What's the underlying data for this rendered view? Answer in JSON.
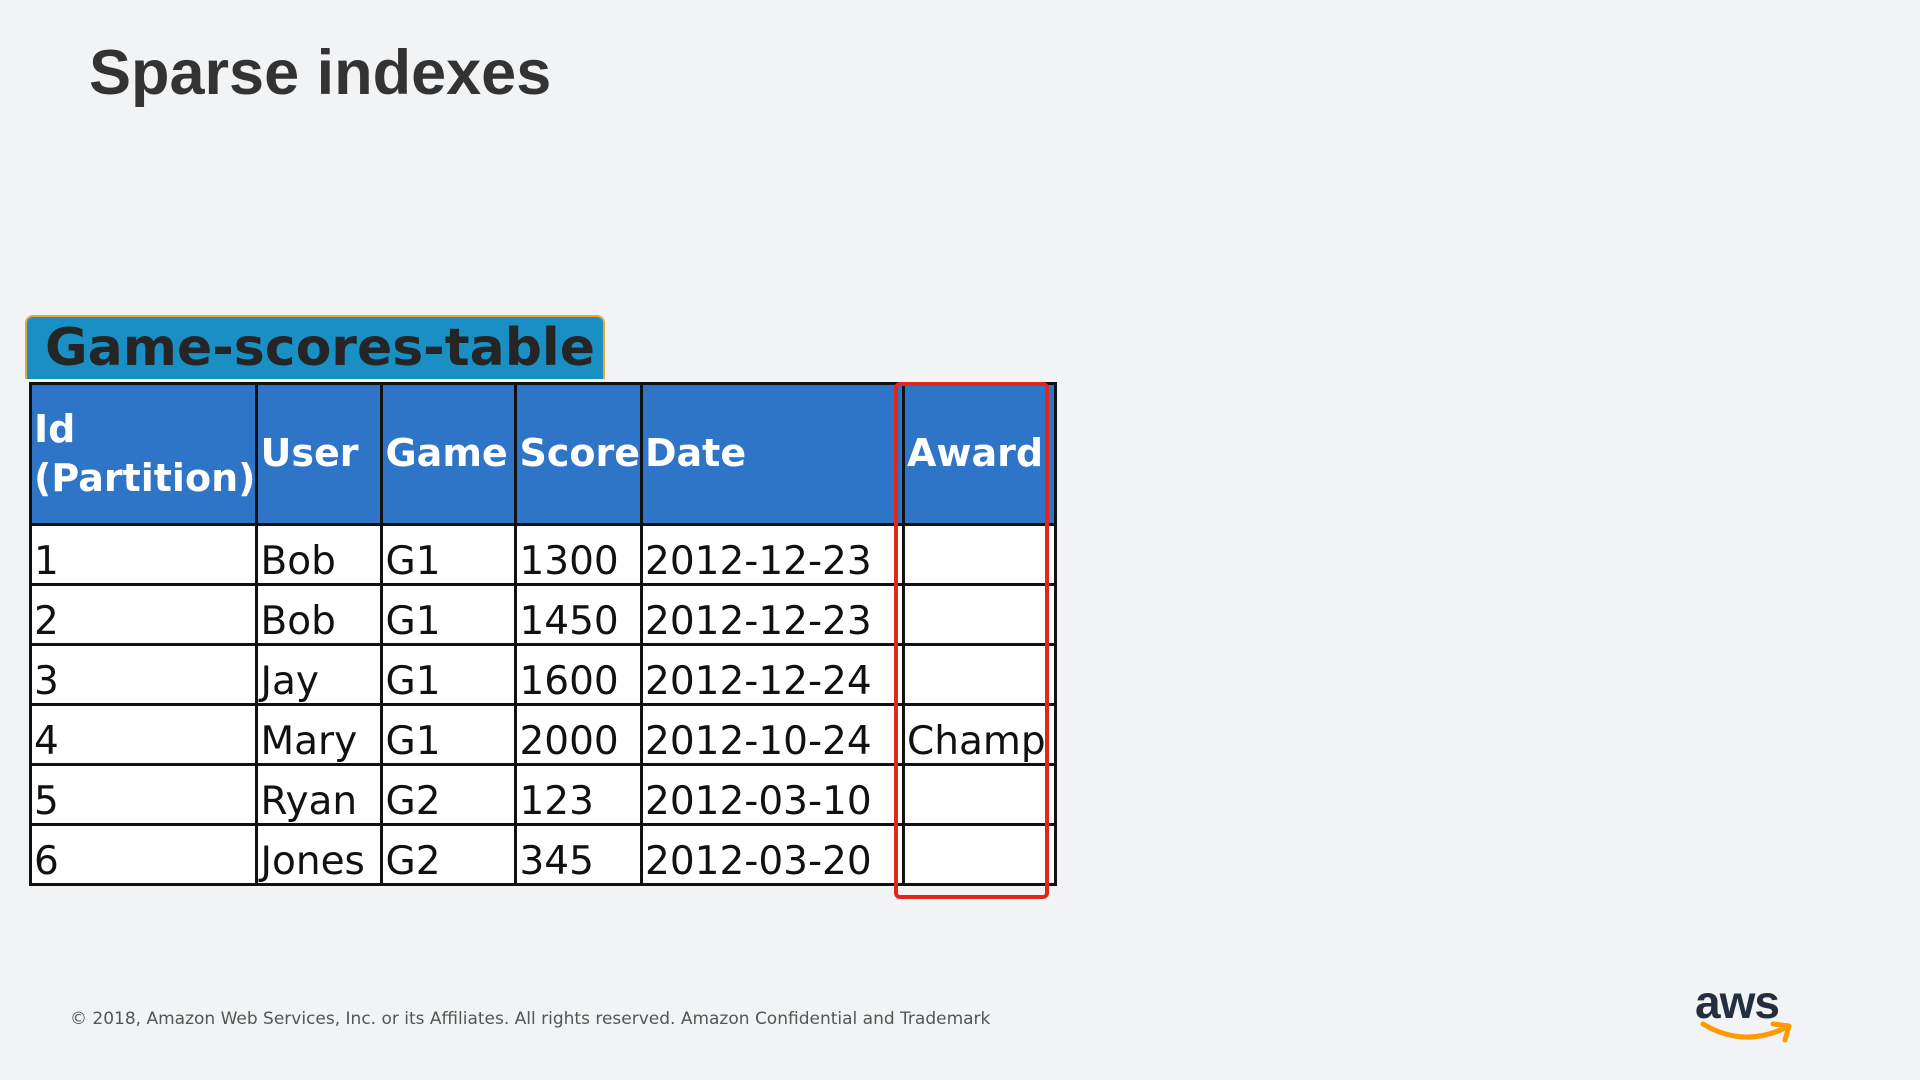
{
  "slide": {
    "title": "Sparse indexes",
    "table_name": "Game-scores-table",
    "footer": "© 2018, Amazon Web Services, Inc. or its Affiliates. All rights reserved. Amazon Confidential and Trademark",
    "logo_text": "aws"
  },
  "table": {
    "headers": [
      "Id (Partition)",
      "User",
      "Game",
      "Score",
      "Date",
      "Award"
    ],
    "rows": [
      [
        "1",
        "Bob",
        "G1",
        "1300",
        "2012-12-23",
        ""
      ],
      [
        "2",
        "Bob",
        "G1",
        "1450",
        "2012-12-23",
        ""
      ],
      [
        "3",
        "Jay",
        "G1",
        "1600",
        "2012-12-24",
        ""
      ],
      [
        "4",
        "Mary",
        "G1",
        "2000",
        "2012-10-24",
        "Champ"
      ],
      [
        "5",
        "Ryan",
        "G2",
        "123",
        "2012-03-10",
        ""
      ],
      [
        "6",
        "Jones",
        "G2",
        "345",
        "2012-03-20",
        ""
      ]
    ]
  },
  "colors": {
    "header_bg": "#2e74c7",
    "tab_bg": "#1a8fc4",
    "tab_border": "#e9a63a",
    "highlight": "#e1261c",
    "logo_smile": "#ff9900"
  },
  "icons": {
    "logo": "aws-logo",
    "smile": "aws-smile-arrow-icon"
  }
}
